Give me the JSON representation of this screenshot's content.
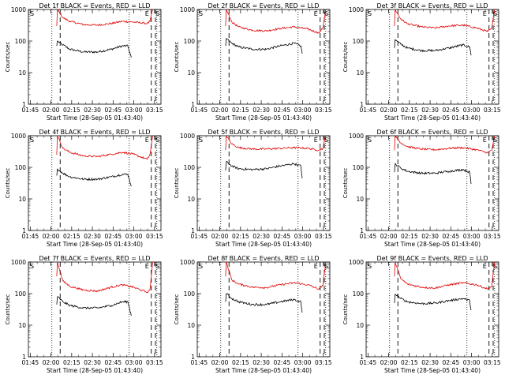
{
  "figure": {
    "ylabel": "Counts/sec",
    "xlabel": "Start Time (28-Sep-05 01:43:40)",
    "x_ticks": [
      "01:45",
      "02:00",
      "02:15",
      "02:30",
      "02:45",
      "03:00",
      "03:15"
    ],
    "y_ticks": [
      "1",
      "10",
      "100",
      "1000"
    ],
    "markers": {
      "S": "S",
      "E": "E"
    },
    "colors": {
      "events": "#000000",
      "lld": "#e00000"
    }
  },
  "chart_data": [
    {
      "type": "line",
      "title": "Det 1f BLACK = Events, RED = LLD",
      "x_unit": "minutes since 01:43:40",
      "xlim": [
        0,
        96
      ],
      "ylim": [
        1,
        1000
      ],
      "y_scale": "log",
      "series": [
        {
          "name": "Events",
          "x": [
            20.5,
            21,
            25,
            30,
            40,
            50,
            60,
            68,
            72,
            74.5
          ],
          "y": [
            70,
            100,
            75,
            55,
            45,
            45,
            55,
            70,
            70,
            30
          ]
        },
        {
          "name": "LLD",
          "x": [
            20.5,
            21,
            25,
            30,
            40,
            50,
            60,
            68,
            76,
            86,
            88,
            90
          ],
          "y": [
            300,
            1000,
            550,
            420,
            330,
            320,
            360,
            420,
            400,
            360,
            420,
            1000
          ]
        }
      ],
      "vlines_dotted": [
        17,
        73,
        93
      ],
      "vlines_dashed": [
        23,
        89,
        92
      ]
    },
    {
      "type": "line",
      "title": "Det 2f BLACK = Events, RED = LLD",
      "x_unit": "minutes since 01:43:40",
      "xlim": [
        0,
        96
      ],
      "ylim": [
        1,
        1000
      ],
      "y_scale": "log",
      "series": [
        {
          "name": "Events",
          "x": [
            20.5,
            21,
            25,
            30,
            40,
            50,
            60,
            70,
            75,
            76
          ],
          "y": [
            70,
            120,
            85,
            65,
            55,
            55,
            70,
            85,
            70,
            40
          ]
        },
        {
          "name": "LLD",
          "x": [
            20.5,
            21,
            25,
            30,
            40,
            50,
            60,
            70,
            80,
            88,
            91,
            93
          ],
          "y": [
            300,
            1000,
            400,
            280,
            220,
            210,
            250,
            280,
            240,
            180,
            260,
            1000
          ]
        }
      ],
      "vlines_dotted": [
        17,
        73,
        93
      ],
      "vlines_dashed": [
        23,
        89,
        92
      ]
    },
    {
      "type": "line",
      "title": "Det 3f BLACK = Events, RED = LLD",
      "x_unit": "minutes since 01:43:40",
      "xlim": [
        0,
        96
      ],
      "ylim": [
        1,
        1000
      ],
      "y_scale": "log",
      "series": [
        {
          "name": "Events",
          "x": [
            20.5,
            21,
            25,
            30,
            40,
            50,
            60,
            70,
            75,
            76
          ],
          "y": [
            60,
            110,
            80,
            60,
            50,
            50,
            60,
            75,
            65,
            35
          ]
        },
        {
          "name": "LLD",
          "x": [
            20.5,
            21,
            25,
            30,
            40,
            50,
            60,
            70,
            80,
            88,
            91,
            93
          ],
          "y": [
            300,
            1000,
            500,
            350,
            280,
            260,
            300,
            320,
            260,
            200,
            250,
            1000
          ]
        }
      ],
      "vlines_dotted": [
        17,
        73,
        93
      ],
      "vlines_dashed": [
        23,
        89,
        92
      ]
    },
    {
      "type": "line",
      "title": "Det 4f BLACK = Events, RED = LLD",
      "x_unit": "minutes since 01:43:40",
      "xlim": [
        0,
        96
      ],
      "ylim": [
        1,
        1000
      ],
      "y_scale": "log",
      "series": [
        {
          "name": "Events",
          "x": [
            20.5,
            21,
            25,
            30,
            40,
            50,
            60,
            68,
            72,
            74.5
          ],
          "y": [
            55,
            90,
            65,
            50,
            42,
            42,
            50,
            60,
            60,
            25
          ]
        },
        {
          "name": "LLD",
          "x": [
            20.5,
            21,
            25,
            30,
            40,
            50,
            60,
            68,
            76,
            86,
            88,
            90
          ],
          "y": [
            250,
            1000,
            400,
            300,
            230,
            220,
            260,
            300,
            260,
            180,
            250,
            1000
          ]
        }
      ],
      "vlines_dotted": [
        17,
        73,
        93
      ],
      "vlines_dashed": [
        23,
        89,
        92
      ]
    },
    {
      "type": "line",
      "title": "Det 5f BLACK = Events, RED = LLD",
      "x_unit": "minutes since 01:43:40",
      "xlim": [
        0,
        96
      ],
      "ylim": [
        1,
        1000
      ],
      "y_scale": "log",
      "series": [
        {
          "name": "Events",
          "x": [
            20.5,
            21,
            25,
            30,
            40,
            50,
            60,
            70,
            75,
            76
          ],
          "y": [
            80,
            150,
            110,
            90,
            85,
            90,
            110,
            130,
            110,
            45
          ]
        },
        {
          "name": "LLD",
          "x": [
            20.5,
            21,
            25,
            30,
            40,
            50,
            60,
            70,
            80,
            88,
            91,
            93
          ],
          "y": [
            350,
            1000,
            550,
            420,
            380,
            380,
            400,
            420,
            400,
            350,
            400,
            1000
          ]
        }
      ],
      "vlines_dotted": [
        17,
        73,
        93
      ],
      "vlines_dashed": [
        23,
        89,
        92
      ]
    },
    {
      "type": "line",
      "title": "Det 6f BLACK = Events, RED = LLD",
      "x_unit": "minutes since 01:43:40",
      "xlim": [
        0,
        96
      ],
      "ylim": [
        1,
        1000
      ],
      "y_scale": "log",
      "series": [
        {
          "name": "Events",
          "x": [
            20.5,
            21,
            25,
            30,
            40,
            50,
            60,
            70,
            75,
            76
          ],
          "y": [
            70,
            130,
            95,
            75,
            65,
            65,
            75,
            85,
            70,
            30
          ]
        },
        {
          "name": "LLD",
          "x": [
            20.5,
            21,
            25,
            30,
            40,
            50,
            60,
            70,
            80,
            88,
            91,
            93
          ],
          "y": [
            350,
            1000,
            600,
            450,
            380,
            360,
            400,
            420,
            360,
            290,
            350,
            1000
          ]
        }
      ],
      "vlines_dotted": [
        17,
        73,
        93
      ],
      "vlines_dashed": [
        23,
        89,
        92
      ]
    },
    {
      "type": "line",
      "title": "Det 7f BLACK = Events, RED = LLD",
      "x_unit": "minutes since 01:43:40",
      "xlim": [
        0,
        96
      ],
      "ylim": [
        1,
        1000
      ],
      "y_scale": "log",
      "series": [
        {
          "name": "Events",
          "x": [
            20.5,
            21,
            25,
            30,
            40,
            50,
            60,
            68,
            72,
            74.5
          ],
          "y": [
            45,
            80,
            55,
            42,
            35,
            35,
            42,
            55,
            55,
            20
          ]
        },
        {
          "name": "LLD",
          "x": [
            20.5,
            21,
            25,
            30,
            40,
            50,
            60,
            68,
            76,
            86,
            88,
            90
          ],
          "y": [
            350,
            1000,
            250,
            170,
            130,
            120,
            160,
            190,
            160,
            110,
            130,
            1000
          ]
        }
      ],
      "vlines_dotted": [
        17,
        73,
        93
      ],
      "vlines_dashed": [
        23,
        89,
        92
      ]
    },
    {
      "type": "line",
      "title": "Det 8f BLACK = Events, RED = LLD",
      "x_unit": "minutes since 01:43:40",
      "xlim": [
        0,
        96
      ],
      "ylim": [
        1,
        1000
      ],
      "y_scale": "log",
      "series": [
        {
          "name": "Events",
          "x": [
            20.5,
            21,
            25,
            30,
            40,
            50,
            60,
            70,
            75,
            76
          ],
          "y": [
            55,
            100,
            70,
            55,
            45,
            45,
            55,
            65,
            55,
            25
          ]
        },
        {
          "name": "LLD",
          "x": [
            20.5,
            21,
            25,
            30,
            40,
            50,
            60,
            70,
            80,
            88,
            91,
            93
          ],
          "y": [
            350,
            1000,
            270,
            200,
            160,
            155,
            190,
            220,
            190,
            140,
            180,
            1000
          ]
        }
      ],
      "vlines_dotted": [
        17,
        73,
        93
      ],
      "vlines_dashed": [
        23,
        89,
        92
      ]
    },
    {
      "type": "line",
      "title": "Det 9f BLACK = Events, RED = LLD",
      "x_unit": "minutes since 01:43:40",
      "xlim": [
        0,
        96
      ],
      "ylim": [
        1,
        1000
      ],
      "y_scale": "log",
      "series": [
        {
          "name": "Events",
          "x": [
            20.5,
            21,
            25,
            30,
            40,
            50,
            60,
            70,
            75,
            76
          ],
          "y": [
            50,
            95,
            70,
            55,
            48,
            50,
            60,
            70,
            60,
            30
          ]
        },
        {
          "name": "LLD",
          "x": [
            20.5,
            21,
            25,
            30,
            40,
            50,
            60,
            70,
            80,
            88,
            91,
            93
          ],
          "y": [
            350,
            1000,
            300,
            200,
            160,
            150,
            190,
            220,
            190,
            140,
            170,
            1000
          ]
        }
      ],
      "vlines_dotted": [
        17,
        73,
        93
      ],
      "vlines_dashed": [
        23,
        89,
        92
      ]
    }
  ]
}
